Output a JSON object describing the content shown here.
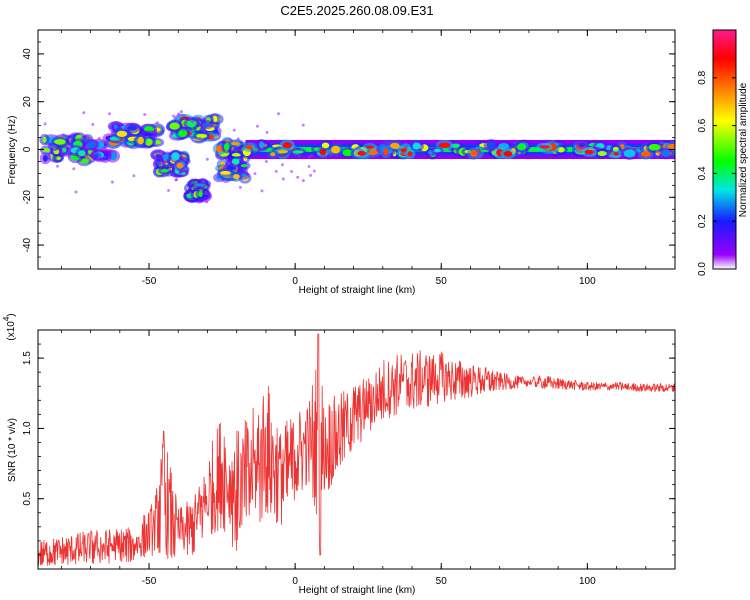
{
  "figure": {
    "title": "C2E5.2025.260.08.09.E31"
  },
  "chart_data": [
    {
      "type": "heatmap",
      "xlabel": "Height of straight line (km)",
      "ylabel": "Frequency (Hz)",
      "xlim": [
        -88,
        130
      ],
      "ylim": [
        -50,
        50
      ],
      "x_ticks": [
        -50,
        0,
        50,
        100
      ],
      "y_ticks": [
        -40,
        -20,
        0,
        20,
        40
      ],
      "colorbar": {
        "label": "Normalized spectral amplitude",
        "range": [
          0,
          1
        ],
        "ticks": [
          0.0,
          0.2,
          0.4,
          0.6,
          0.8
        ],
        "colors": [
          "#ffffff",
          "#9900ff",
          "#1a1aff",
          "#00e6e6",
          "#00ff00",
          "#ffff00",
          "#ff8000",
          "#ff0000",
          "#ff1a8c"
        ]
      },
      "clusters": [
        {
          "x": [
            -88,
            -62
          ],
          "f": [
            -5,
            5
          ],
          "amp": 0.6
        },
        {
          "x": [
            -62,
            -47
          ],
          "f": [
            2,
            10
          ],
          "amp": 0.7
        },
        {
          "x": [
            -47,
            -38
          ],
          "f": [
            -10,
            -2
          ],
          "amp": 0.7
        },
        {
          "x": [
            -42,
            -27
          ],
          "f": [
            5,
            13
          ],
          "amp": 0.8
        },
        {
          "x": [
            -36,
            -31
          ],
          "f": [
            -20,
            -14
          ],
          "amp": 0.5
        },
        {
          "x": [
            -26,
            -17
          ],
          "f": [
            -12,
            3
          ],
          "amp": 0.7
        },
        {
          "x": [
            -17,
            130
          ],
          "f": [
            -2,
            2
          ],
          "amp": 0.85
        }
      ]
    },
    {
      "type": "line",
      "xlabel": "Height of straight line (km)",
      "ylabel": "SNR (10 * v/v)",
      "y_multiplier": "(x10",
      "y_multiplier_exp": "4",
      "xlim": [
        -88,
        130
      ],
      "ylim": [
        0,
        1.7
      ],
      "x_ticks": [
        -50,
        0,
        50,
        100
      ],
      "y_ticks": [
        0.5,
        1.0,
        1.5
      ],
      "y_tick_labels": [
        "0.5",
        "1.0",
        "1.5"
      ],
      "color": "#ee3333",
      "envelope": {
        "x": [
          -88,
          -70,
          -55,
          -48,
          -45,
          -40,
          -35,
          -30,
          -25,
          -20,
          -15,
          -10,
          -5,
          0,
          5,
          8,
          10,
          15,
          20,
          25,
          30,
          35,
          40,
          45,
          50,
          55,
          60,
          65,
          70,
          75,
          80,
          85,
          90,
          100,
          110,
          120,
          130
        ],
        "lo": [
          0.02,
          0.03,
          0.05,
          0.1,
          0.08,
          0.05,
          0.1,
          0.2,
          0.3,
          0.1,
          0.2,
          0.4,
          0.3,
          0.5,
          0.6,
          0.1,
          0.5,
          0.7,
          0.85,
          0.95,
          1.05,
          1.1,
          1.12,
          1.15,
          1.18,
          1.2,
          1.22,
          1.25,
          1.27,
          1.28,
          1.3,
          1.28,
          1.28,
          1.27,
          1.27,
          1.26,
          1.26
        ],
        "hi": [
          0.2,
          0.28,
          0.3,
          0.5,
          0.98,
          0.45,
          0.5,
          0.82,
          1.12,
          1.0,
          1.12,
          1.38,
          1.02,
          1.12,
          1.22,
          1.67,
          1.2,
          1.25,
          1.32,
          1.38,
          1.5,
          1.55,
          1.55,
          1.56,
          1.55,
          1.5,
          1.46,
          1.44,
          1.4,
          1.38,
          1.36,
          1.38,
          1.36,
          1.33,
          1.33,
          1.32,
          1.32
        ]
      }
    }
  ]
}
